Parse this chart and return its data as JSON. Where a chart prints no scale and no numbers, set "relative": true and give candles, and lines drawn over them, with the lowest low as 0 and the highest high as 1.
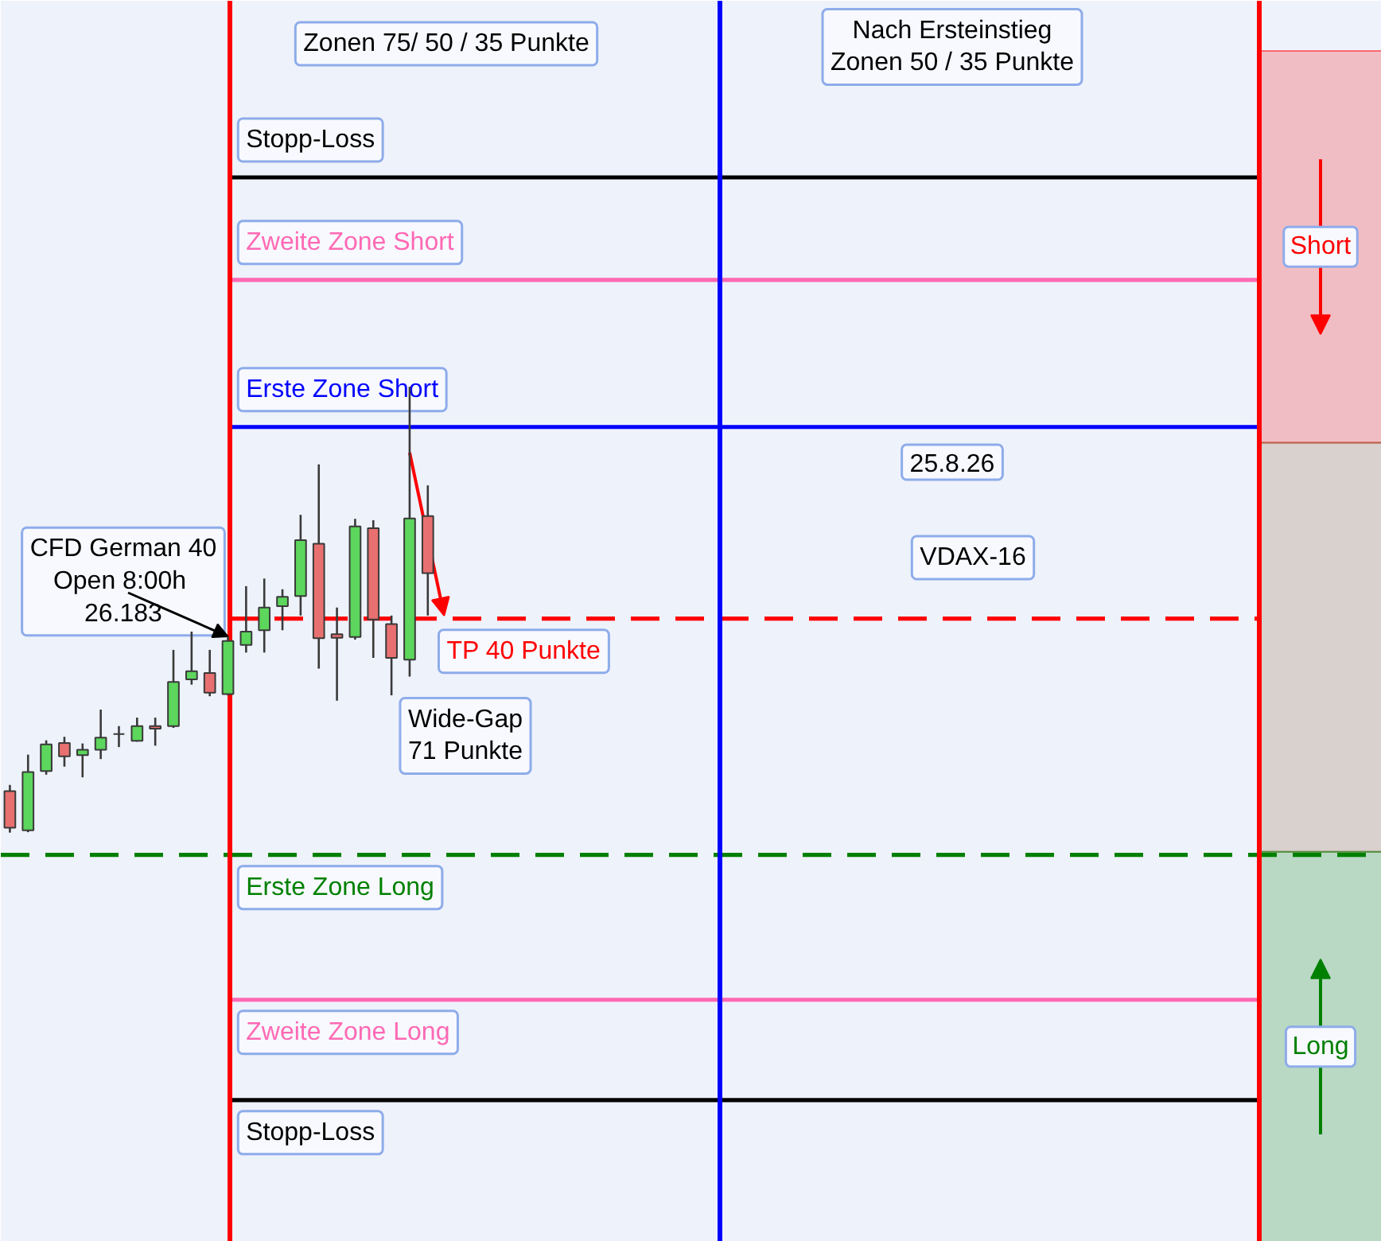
{
  "chart_data": {
    "type": "candlestick",
    "relative": true,
    "categories": [
      null,
      null,
      null,
      null,
      null,
      null,
      null,
      null,
      null,
      null,
      null,
      null,
      null,
      null,
      null,
      null,
      null,
      null,
      null,
      null,
      null,
      null,
      null,
      null,
      null,
      null,
      null,
      null,
      null,
      null,
      null,
      null,
      null,
      null,
      null,
      null,
      null,
      null,
      null,
      null,
      null,
      null,
      null,
      null,
      null,
      null,
      null,
      null,
      null,
      null,
      null,
      null,
      null,
      null,
      null,
      null,
      null,
      null,
      null,
      null,
      null,
      null,
      null,
      null,
      null,
      null,
      null,
      null,
      null,
      null,
      null,
      null,
      null,
      null,
      null,
      null
    ],
    "ohlc": [
      [
        0.093,
        0.107,
        0.0,
        0.011
      ],
      [
        0.005,
        0.175,
        0.001,
        0.136
      ],
      [
        0.138,
        0.207,
        0.13,
        0.198
      ],
      [
        0.201,
        0.215,
        0.148,
        0.171
      ],
      [
        0.174,
        0.2,
        0.124,
        0.186
      ],
      [
        0.186,
        0.276,
        0.165,
        0.213
      ],
      [
        0.221,
        0.239,
        0.192,
        0.221
      ],
      [
        0.206,
        0.258,
        0.204,
        0.239
      ],
      [
        0.239,
        0.258,
        0.195,
        0.233
      ],
      [
        0.239,
        0.41,
        0.235,
        0.338
      ],
      [
        0.344,
        0.451,
        0.332,
        0.362
      ],
      [
        0.358,
        0.41,
        0.306,
        0.314
      ],
      [
        0.311,
        0.44,
        0.308,
        0.43
      ],
      [
        0.421,
        0.553,
        0.404,
        0.451
      ],
      [
        0.454,
        0.57,
        0.404,
        0.505
      ],
      [
        0.508,
        0.546,
        0.454,
        0.529
      ],
      [
        0.531,
        0.713,
        0.487,
        0.656
      ],
      [
        0.648,
        0.826,
        0.368,
        0.436
      ],
      [
        0.445,
        0.505,
        0.296,
        0.437
      ],
      [
        0.439,
        0.704,
        0.433,
        0.687
      ],
      [
        0.683,
        0.701,
        0.392,
        0.478
      ],
      [
        0.468,
        0.487,
        0.308,
        0.392
      ],
      [
        0.388,
        1.0,
        0.35,
        0.705
      ],
      [
        0.71,
        0.779,
        0.487,
        0.582
      ],
      null,
      null,
      null,
      null,
      null,
      null,
      null,
      null,
      null,
      null,
      null,
      null,
      null,
      null,
      null,
      null,
      null,
      null,
      null,
      null,
      null,
      null,
      null,
      null,
      null,
      null,
      null,
      null,
      null,
      null,
      null,
      null,
      null,
      null,
      null,
      null,
      null,
      null,
      null,
      null,
      null,
      null,
      null,
      null,
      null,
      null,
      null,
      null,
      null,
      null,
      null,
      null
    ],
    "colors": [
      "#e87070",
      "#5cd65c",
      "#5cd65c",
      "#e87070",
      "#5cd65c",
      "#5cd65c",
      "#333333",
      "#5cd65c",
      "#e87070",
      "#5cd65c",
      "#5cd65c",
      "#e87070",
      "#5cd65c",
      "#5cd65c",
      "#5cd65c",
      "#5cd65c",
      "#5cd65c",
      "#e87070",
      "#e87070",
      "#5cd65c",
      "#e87070",
      "#e87070",
      "#5cd65c",
      "#e87070",
      null,
      null,
      null,
      null,
      null,
      null,
      null,
      null,
      null,
      null,
      null,
      null,
      null,
      null,
      null,
      null,
      null,
      null,
      null,
      null,
      null,
      null,
      null,
      null,
      null,
      null,
      null,
      null,
      null,
      null,
      null,
      null,
      null,
      null,
      null,
      null,
      null,
      null,
      null,
      null,
      null,
      null,
      null,
      null,
      null,
      null,
      null,
      null,
      null,
      null,
      null,
      null
    ],
    "ref_lines": [
      {
        "axis": "y",
        "value": 1.47,
        "label": "Stopp-Loss",
        "color": "#000000"
      },
      {
        "axis": "y",
        "value": 1.24,
        "label": "Zweite Zone Short",
        "color": "#ff69b4"
      },
      {
        "axis": "y",
        "value": 0.91,
        "label": "Erste Zone Short",
        "color": "#0000ff"
      },
      {
        "axis": "y",
        "value": 0.48,
        "label": "TP 40 Punkte",
        "color": "#ff0000",
        "line_style": "dashed"
      },
      {
        "axis": "y",
        "value": -0.05,
        "label": "Erste Zone Long",
        "color": "#008000",
        "line_style": "dashed"
      },
      {
        "axis": "y",
        "value": -0.375,
        "label": "Zweite Zone Long",
        "color": "#ff69b4"
      },
      {
        "axis": "y",
        "value": -0.6,
        "label": "Stopp-Loss",
        "color": "#000000"
      }
    ],
    "bands": [
      {
        "axis": "y",
        "from": 0.875,
        "to": 1.754,
        "label": "Short",
        "color": "#ff0000"
      },
      {
        "axis": "y",
        "from": -0.043,
        "to": 0.875,
        "color": "#8b5a2b"
      },
      {
        "axis": "y",
        "from": -0.918,
        "to": -0.043,
        "label": "Long",
        "color": "#008000"
      }
    ],
    "annotations": [
      "Zonen 75/ 50 / 35 Punkte",
      "Nach Ersteinstieg\nZonen 50 / 35 Punkte",
      "CFD German 40\nOpen  8:00h\n26.183",
      "Wide-Gap\n71 Punkte",
      "25.8.26",
      "VDAX-16"
    ]
  }
}
